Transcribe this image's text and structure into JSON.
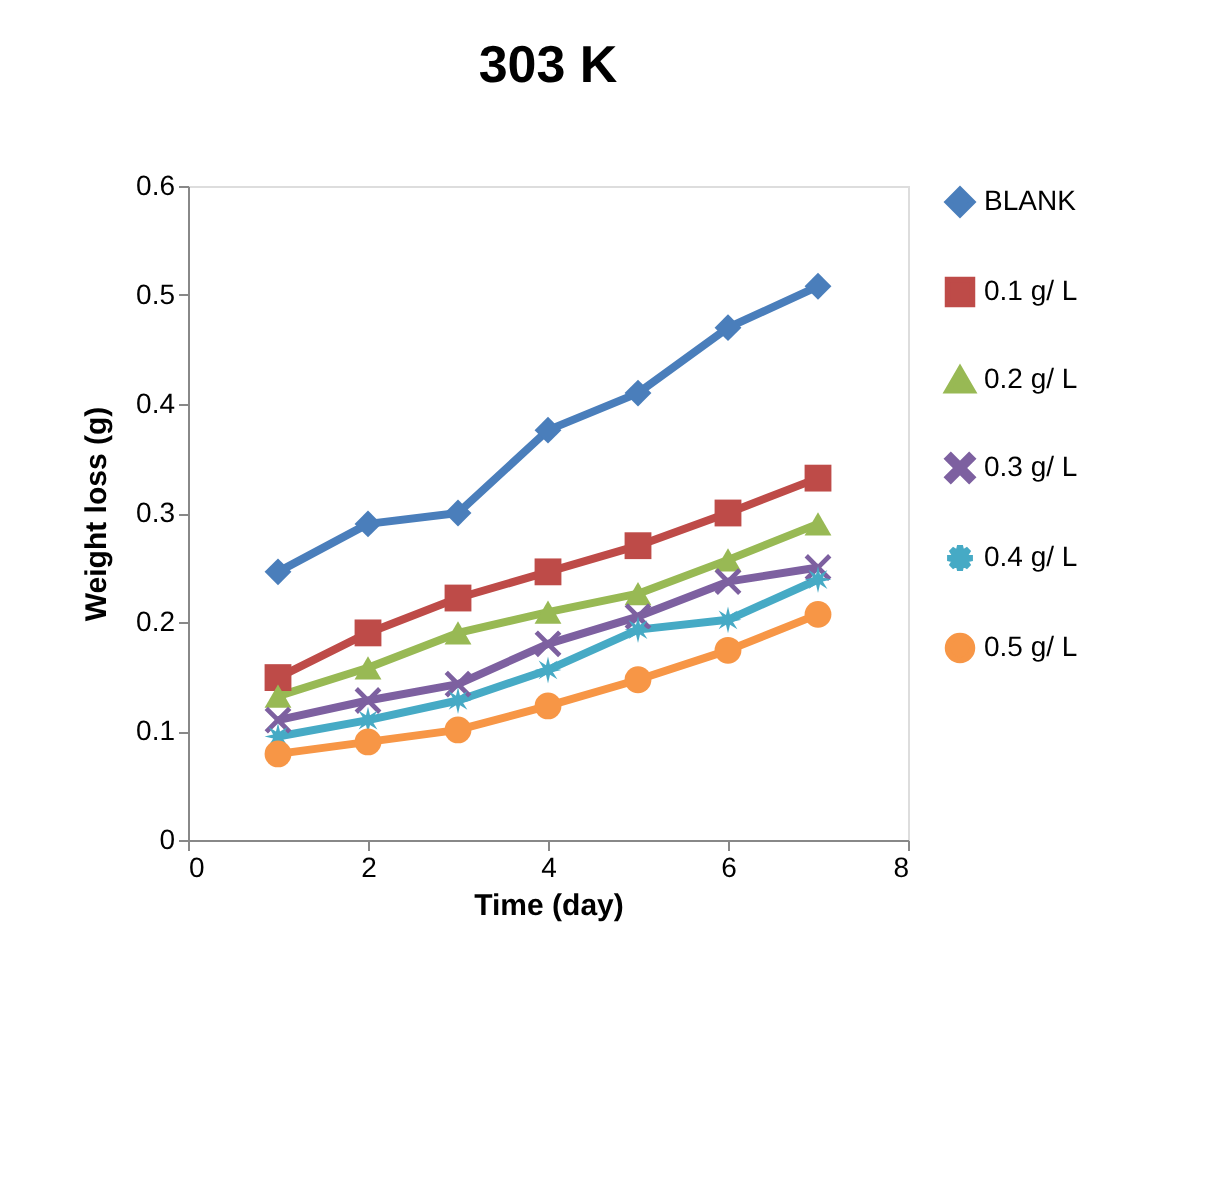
{
  "chart_data": {
    "type": "line",
    "title": "303 K",
    "xlabel": "Time (day)",
    "ylabel": "Weight loss (g)",
    "x": [
      1,
      2,
      3,
      4,
      5,
      6,
      7
    ],
    "xlim": [
      0,
      8
    ],
    "xticks": [
      0,
      2,
      4,
      6,
      8
    ],
    "ylim": [
      0,
      0.6
    ],
    "yticks": [
      0,
      0.1,
      0.2,
      0.3,
      0.4,
      0.5,
      0.6
    ],
    "grid": false,
    "legend": "right",
    "line_style": "solid",
    "series": [
      {
        "name": "BLANK",
        "color": "#4a7ebb",
        "marker": "diamond",
        "values": [
          0.246,
          0.29,
          0.3,
          0.376,
          0.41,
          0.47,
          0.508
        ]
      },
      {
        "name": "0.1 g/ L",
        "color": "#be4b48",
        "marker": "square",
        "values": [
          0.149,
          0.19,
          0.222,
          0.246,
          0.27,
          0.3,
          0.332
        ]
      },
      {
        "name": "0.2 g/ L",
        "color": "#98b954",
        "marker": "triangle",
        "values": [
          0.132,
          0.158,
          0.19,
          0.209,
          0.226,
          0.257,
          0.29
        ]
      },
      {
        "name": "0.3 g/ L",
        "color": "#7d60a0",
        "marker": "cross",
        "values": [
          0.11,
          0.128,
          0.143,
          0.18,
          0.205,
          0.237,
          0.25
        ]
      },
      {
        "name": "0.4 g/ L",
        "color": "#46aac5",
        "marker": "star",
        "values": [
          0.095,
          0.11,
          0.128,
          0.156,
          0.193,
          0.202,
          0.239
        ]
      },
      {
        "name": "0.5 g/ L",
        "color": "#f79646",
        "marker": "circle",
        "values": [
          0.079,
          0.09,
          0.101,
          0.123,
          0.147,
          0.174,
          0.207
        ]
      }
    ]
  }
}
